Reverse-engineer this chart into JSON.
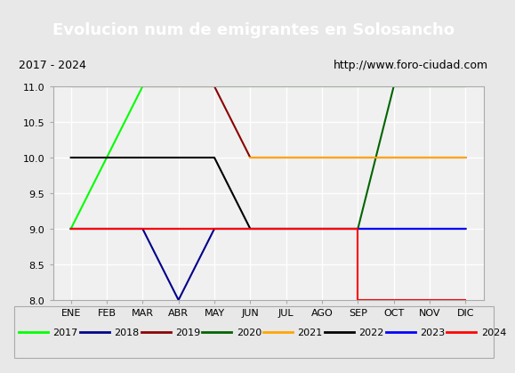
{
  "title": "Evolucion num de emigrantes en Solosancho",
  "subtitle_left": "2017 - 2024",
  "subtitle_right": "http://www.foro-ciudad.com",
  "xlabel": "",
  "ylabel": "",
  "ylim": [
    8.0,
    11.0
  ],
  "yticks": [
    8.0,
    8.5,
    9.0,
    9.5,
    10.0,
    10.5,
    11.0
  ],
  "months": [
    "ENE",
    "FEB",
    "MAR",
    "ABR",
    "MAY",
    "JUN",
    "JUL",
    "AGO",
    "SEP",
    "OCT",
    "NOV",
    "DIC"
  ],
  "series": {
    "2017": {
      "color": "#00ff00",
      "data": [
        [
          1,
          9
        ],
        [
          2,
          10
        ],
        [
          3,
          11
        ],
        [
          12,
          11
        ]
      ]
    },
    "2018": {
      "color": "#00008b",
      "data": [
        [
          1,
          9
        ],
        [
          3,
          9
        ],
        [
          4,
          8
        ],
        [
          5,
          9
        ],
        [
          12,
          9
        ]
      ]
    },
    "2019": {
      "color": "#8b0000",
      "data": [
        [
          1,
          11
        ],
        [
          5,
          11
        ],
        [
          6,
          10
        ],
        [
          12,
          10
        ]
      ]
    },
    "2020": {
      "color": "#006400",
      "data": [
        [
          1,
          9
        ],
        [
          9,
          9
        ],
        [
          10,
          11
        ],
        [
          12,
          11
        ]
      ]
    },
    "2021": {
      "color": "#ffa500",
      "data": [
        [
          6,
          10
        ],
        [
          12,
          10
        ]
      ]
    },
    "2022": {
      "color": "#000000",
      "data": [
        [
          1,
          10
        ],
        [
          5,
          10
        ],
        [
          6,
          9
        ],
        [
          12,
          9
        ]
      ]
    },
    "2023": {
      "color": "#0000ff",
      "data": [
        [
          1,
          9
        ],
        [
          12,
          9
        ]
      ]
    },
    "2024": {
      "color": "#ff0000",
      "data": [
        [
          1,
          9
        ],
        [
          9,
          9
        ],
        [
          9,
          8
        ],
        [
          12,
          8
        ]
      ]
    }
  },
  "legend_order": [
    "2017",
    "2018",
    "2019",
    "2020",
    "2021",
    "2022",
    "2023",
    "2024"
  ],
  "bg_color": "#e8e8e8",
  "plot_bg_color": "#f0f0f0",
  "title_bg_color": "#4472c4",
  "title_text_color": "#ffffff",
  "subtitle_bg_color": "#ffffff",
  "grid_color": "#ffffff"
}
